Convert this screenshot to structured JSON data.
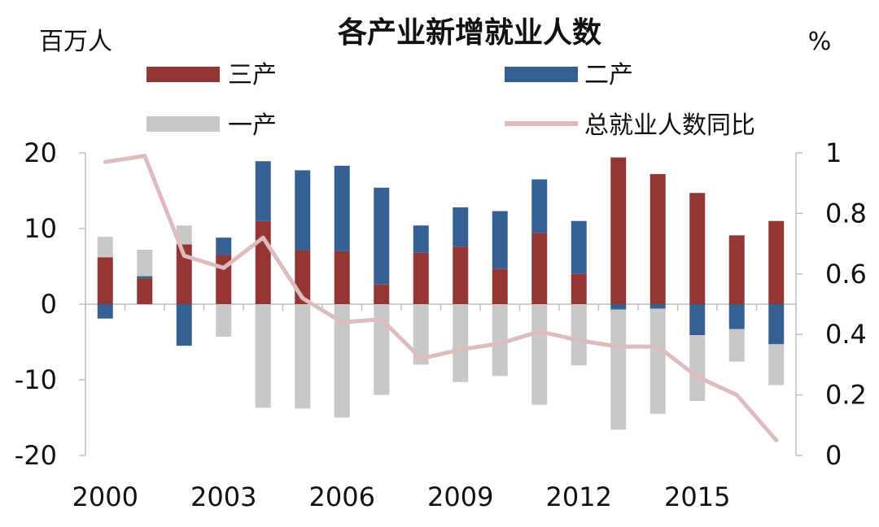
{
  "chart_data": {
    "type": "bar",
    "title": "各产业新增就业人数",
    "y_left_unit": "百万人",
    "y_right_unit": "%",
    "x": [
      2000,
      2001,
      2002,
      2003,
      2004,
      2005,
      2006,
      2007,
      2008,
      2009,
      2010,
      2011,
      2012,
      2013,
      2014,
      2015,
      2016,
      2017
    ],
    "x_tick_labels": [
      "2000",
      "2003",
      "2006",
      "2009",
      "2012",
      "2015"
    ],
    "y_left_ticks": [
      "20",
      "10",
      "0",
      "-10",
      "-20"
    ],
    "y_right_ticks": [
      "1",
      "0.8",
      "0.6",
      "0.4",
      "0.2",
      "0"
    ],
    "ylim_left": [
      -20,
      20
    ],
    "ylim_right": [
      0,
      1
    ],
    "stacked": true,
    "series": [
      {
        "name": "三产",
        "type": "bar",
        "axis": "left",
        "color": "#943634",
        "values": [
          6.2,
          3.4,
          7.9,
          6.5,
          11.0,
          7.1,
          7.0,
          2.6,
          6.8,
          7.6,
          4.7,
          9.4,
          4.0,
          19.4,
          17.2,
          14.7,
          9.1,
          11.0
        ]
      },
      {
        "name": "二产",
        "type": "bar",
        "axis": "left",
        "color": "#376092",
        "values": [
          -1.9,
          0.3,
          -5.5,
          2.3,
          7.9,
          10.6,
          11.3,
          12.8,
          3.6,
          5.2,
          7.6,
          7.1,
          7.0,
          -0.7,
          -0.6,
          -4.1,
          -3.3,
          -5.3
        ]
      },
      {
        "name": "一产",
        "type": "bar",
        "axis": "left",
        "color": "#c8c8c8",
        "values": [
          2.7,
          3.5,
          2.5,
          -4.3,
          -13.7,
          -13.8,
          -15.0,
          -12.0,
          -8.0,
          -10.3,
          -9.5,
          -13.3,
          -8.1,
          -15.9,
          -13.9,
          -8.7,
          -4.3,
          -5.4
        ]
      },
      {
        "name": "总就业人数同比",
        "type": "line",
        "axis": "right",
        "color": "#dcbcbc",
        "values": [
          0.97,
          0.99,
          0.66,
          0.62,
          0.72,
          0.52,
          0.44,
          0.45,
          0.32,
          0.35,
          0.37,
          0.41,
          0.38,
          0.36,
          0.36,
          0.26,
          0.2,
          0.05
        ]
      }
    ],
    "legend": [
      "三产",
      "二产",
      "一产",
      "总就业人数同比"
    ]
  }
}
